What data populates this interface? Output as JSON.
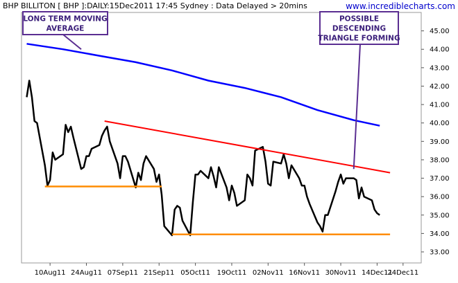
{
  "chart_data": {
    "type": "line",
    "header": "BHP BILLITON [ BHP ]:DAILY:15Dec2011 17:45 Sydney : Data Delayed > 20mins",
    "website": "www.incrediblecharts.com",
    "x_tick_labels": [
      "10Aug11",
      "24Aug11",
      "07Sep11",
      "21Sep11",
      "05Oct11",
      "19Oct11",
      "02Nov11",
      "16Nov11",
      "30Nov11",
      "14Dec11",
      "24Dec11"
    ],
    "y_tick_labels": [
      "33.00",
      "34.00",
      "35.00",
      "36.00",
      "37.00",
      "38.00",
      "39.00",
      "40.00",
      "41.00",
      "42.00",
      "43.00",
      "44.00",
      "45.00"
    ],
    "x_range": [
      "2011-07-30",
      "2011-12-31"
    ],
    "ylim": [
      32.4,
      46.0
    ],
    "grid": false,
    "series": [
      {
        "role": "price",
        "color": "#000000",
        "x": [
          "2011-08-01",
          "2011-08-02",
          "2011-08-03",
          "2011-08-04",
          "2011-08-05",
          "2011-08-08",
          "2011-08-09",
          "2011-08-10",
          "2011-08-11",
          "2011-08-12",
          "2011-08-15",
          "2011-08-16",
          "2011-08-17",
          "2011-08-18",
          "2011-08-19",
          "2011-08-22",
          "2011-08-23",
          "2011-08-24",
          "2011-08-25",
          "2011-08-26",
          "2011-08-29",
          "2011-08-30",
          "2011-08-31",
          "2011-09-01",
          "2011-09-02",
          "2011-09-05",
          "2011-09-06",
          "2011-09-07",
          "2011-09-08",
          "2011-09-09",
          "2011-09-12",
          "2011-09-13",
          "2011-09-14",
          "2011-09-15",
          "2011-09-16",
          "2011-09-19",
          "2011-09-20",
          "2011-09-21",
          "2011-09-22",
          "2011-09-23",
          "2011-09-26",
          "2011-09-27",
          "2011-09-28",
          "2011-09-29",
          "2011-09-30",
          "2011-10-03",
          "2011-10-04",
          "2011-10-05",
          "2011-10-06",
          "2011-10-07",
          "2011-10-10",
          "2011-10-11",
          "2011-10-12",
          "2011-10-13",
          "2011-10-14",
          "2011-10-17",
          "2011-10-18",
          "2011-10-19",
          "2011-10-20",
          "2011-10-21",
          "2011-10-24",
          "2011-10-25",
          "2011-10-26",
          "2011-10-27",
          "2011-10-28",
          "2011-10-31",
          "2011-11-01",
          "2011-11-02",
          "2011-11-03",
          "2011-11-04",
          "2011-11-07",
          "2011-11-08",
          "2011-11-09",
          "2011-11-10",
          "2011-11-11",
          "2011-11-14",
          "2011-11-15",
          "2011-11-16",
          "2011-11-17",
          "2011-11-18",
          "2011-11-21",
          "2011-11-22",
          "2011-11-23",
          "2011-11-24",
          "2011-11-25",
          "2011-11-28",
          "2011-11-29",
          "2011-11-30",
          "2011-12-01",
          "2011-12-02",
          "2011-12-05",
          "2011-12-06",
          "2011-12-07",
          "2011-12-08",
          "2011-12-09",
          "2011-12-12",
          "2011-12-13",
          "2011-12-14",
          "2011-12-15"
        ],
        "values": [
          41.4,
          42.3,
          41.4,
          40.1,
          40.0,
          37.7,
          36.6,
          36.9,
          38.4,
          38.0,
          38.3,
          39.9,
          39.5,
          39.8,
          39.2,
          37.5,
          37.6,
          38.2,
          38.2,
          38.6,
          38.8,
          39.3,
          39.6,
          39.8,
          39.0,
          37.8,
          37.0,
          38.2,
          38.2,
          37.9,
          36.5,
          37.3,
          36.9,
          37.8,
          38.2,
          37.5,
          36.8,
          37.2,
          36.1,
          34.4,
          33.9,
          35.3,
          35.5,
          35.4,
          34.7,
          33.9,
          35.7,
          37.2,
          37.2,
          37.4,
          37.0,
          37.6,
          37.1,
          36.5,
          37.6,
          36.5,
          35.8,
          36.6,
          36.2,
          35.5,
          35.8,
          37.2,
          37.0,
          36.6,
          38.5,
          38.7,
          37.9,
          36.7,
          36.6,
          37.9,
          37.8,
          38.3,
          37.8,
          37.0,
          37.7,
          37.0,
          36.6,
          36.6,
          36.0,
          35.6,
          34.6,
          34.4,
          34.1,
          35.0,
          35.0,
          36.3,
          36.8,
          37.2,
          36.7,
          37.0,
          37.0,
          36.9,
          35.9,
          36.5,
          36.0,
          35.8,
          35.3,
          35.1,
          35.0
        ],
        "stroke_width": 2.5
      },
      {
        "role": "long-term moving average",
        "color": "#0000ff",
        "x": [
          "2011-08-01",
          "2011-08-15",
          "2011-08-29",
          "2011-09-12",
          "2011-09-26",
          "2011-10-10",
          "2011-10-24",
          "2011-11-07",
          "2011-11-21",
          "2011-12-05",
          "2011-12-15"
        ],
        "values": [
          44.3,
          44.0,
          43.65,
          43.3,
          42.85,
          42.3,
          41.9,
          41.4,
          40.7,
          40.15,
          39.85
        ],
        "stroke_width": 2.5
      },
      {
        "role": "descending trend line",
        "color": "#ff0000",
        "x": [
          "2011-08-31",
          "2011-12-19"
        ],
        "values": [
          40.1,
          37.3
        ],
        "stroke_width": 2
      },
      {
        "role": "support line (Aug-Sep)",
        "color": "#ff8c00",
        "x": [
          "2011-08-08",
          "2011-09-22"
        ],
        "values": [
          36.55,
          36.55
        ],
        "stroke_width": 2.5
      },
      {
        "role": "support line (Sep-Dec)",
        "color": "#ff8c00",
        "x": [
          "2011-09-26",
          "2011-12-19"
        ],
        "values": [
          33.95,
          33.95
        ],
        "stroke_width": 2.5
      }
    ],
    "annotations": [
      {
        "lines": [
          "LONG TERM MOVING",
          "AVERAGE"
        ],
        "box_color": "#5a2d91",
        "text_color": "#3b1f7a",
        "pointer_to": {
          "x": "2011-08-22",
          "y": 44.0
        }
      },
      {
        "lines": [
          "POSSIBLE",
          "DESCENDING",
          "TRIANGLE FORMING"
        ],
        "box_color": "#5a2d91",
        "text_color": "#3b1f7a",
        "pointer_to": {
          "x": "2011-12-05",
          "y": 37.5
        }
      }
    ]
  }
}
